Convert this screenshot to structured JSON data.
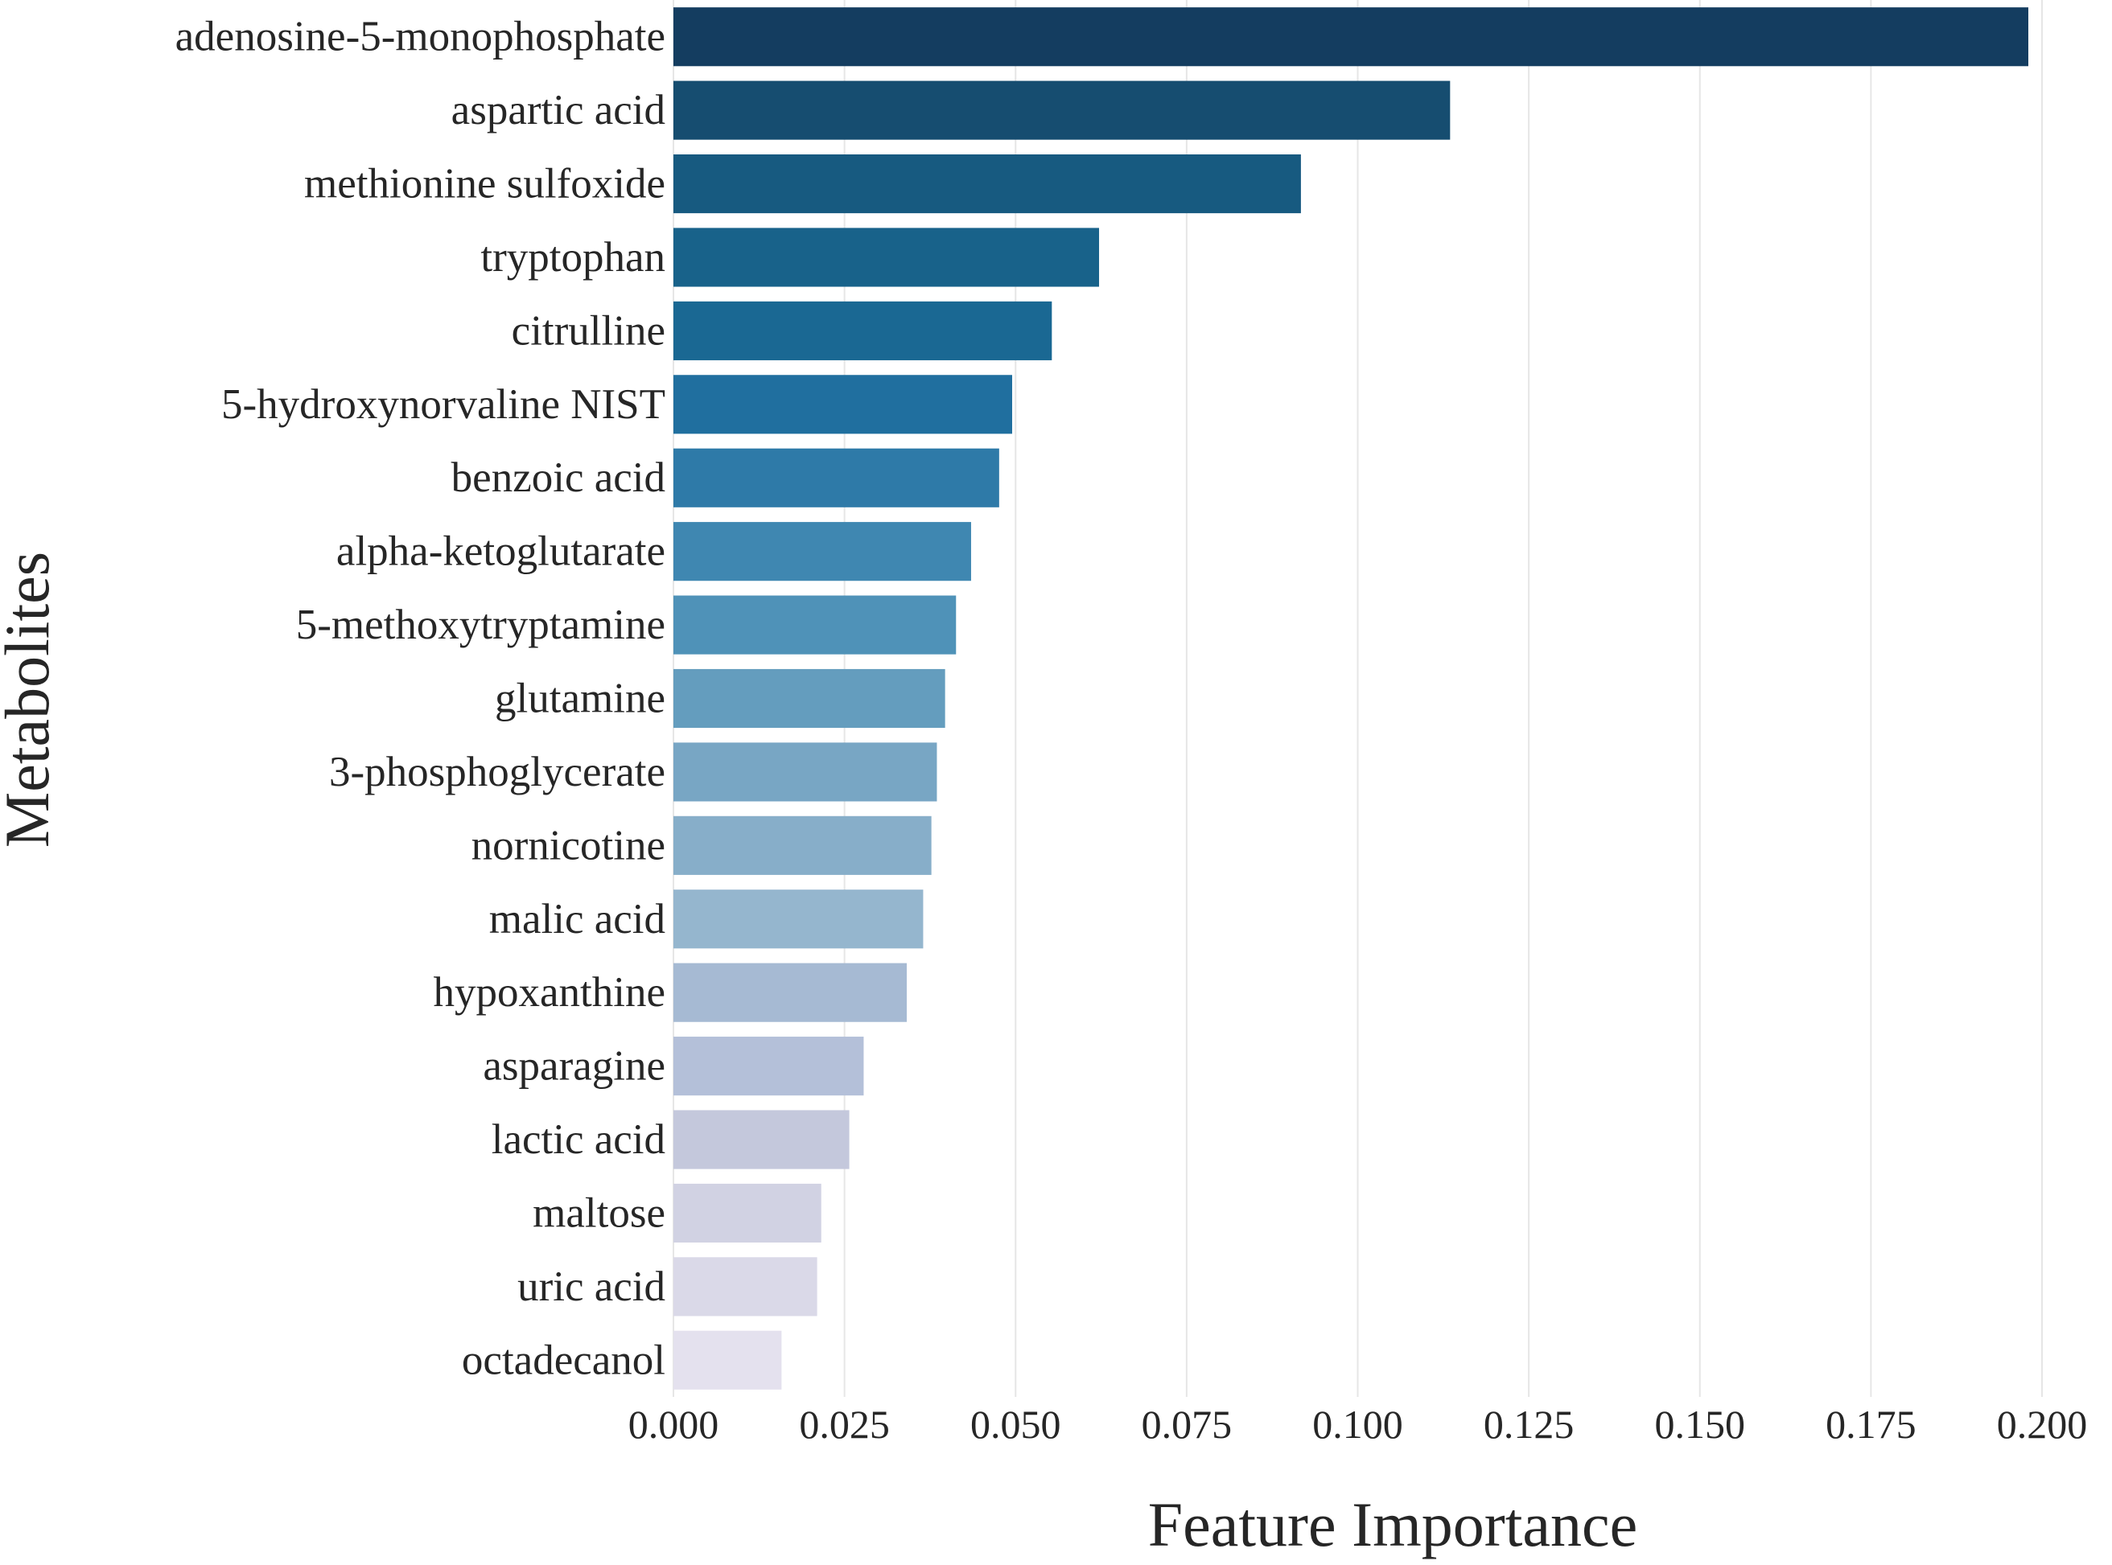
{
  "chart_data": {
    "type": "bar",
    "orientation": "horizontal",
    "title": "",
    "xlabel": "Feature Importance",
    "ylabel": "Metabolites",
    "xlim": [
      0,
      0.2
    ],
    "xticks": [
      "0.000",
      "0.025",
      "0.050",
      "0.075",
      "0.100",
      "0.125",
      "0.150",
      "0.175",
      "0.200"
    ],
    "grid": "vertical",
    "legend": "none",
    "categories": [
      "adenosine-5-monophosphate",
      "aspartic acid",
      "methionine sulfoxide",
      "tryptophan",
      "citrulline",
      "5-hydroxynorvaline NIST",
      "benzoic acid",
      "alpha-ketoglutarate",
      "5-methoxytryptamine",
      "glutamine",
      "3-phosphoglycerate",
      "nornicotine",
      "malic acid",
      "hypoxanthine",
      "asparagine",
      "lactic acid",
      "maltose",
      "uric acid",
      "octadecanol"
    ],
    "values": [
      0.198,
      0.1135,
      0.0917,
      0.0622,
      0.0553,
      0.0495,
      0.0476,
      0.0435,
      0.0413,
      0.0397,
      0.0385,
      0.0377,
      0.0365,
      0.0341,
      0.0278,
      0.0257,
      0.0216,
      0.021,
      0.0158
    ],
    "colors": [
      "#143d60",
      "#164d70",
      "#175a80",
      "#18628a",
      "#1a6893",
      "#206f9f",
      "#2e7aa8",
      "#3f87b1",
      "#4f92b8",
      "#649dbe",
      "#78a6c4",
      "#87aec9",
      "#95b6ce",
      "#a6bad3",
      "#b4c0d9",
      "#c4c8dc",
      "#d1d2e3",
      "#dad9e8",
      "#e4e1ee"
    ]
  }
}
